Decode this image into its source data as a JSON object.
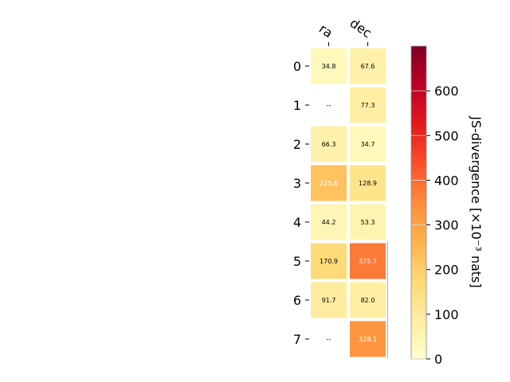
{
  "chart_data": {
    "type": "heatmap",
    "columns": [
      "ra",
      "dec"
    ],
    "rows": [
      "0",
      "1",
      "2",
      "3",
      "4",
      "5",
      "6",
      "7"
    ],
    "values": [
      [
        34.8,
        67.6
      ],
      [
        null,
        77.3
      ],
      [
        66.3,
        34.7
      ],
      [
        225.6,
        128.9
      ],
      [
        44.2,
        53.3
      ],
      [
        170.9,
        375.7
      ],
      [
        91.7,
        82.0
      ],
      [
        null,
        328.1
      ]
    ],
    "cell_labels": [
      [
        "34.8",
        "67.6"
      ],
      [
        "--",
        "77.3"
      ],
      [
        "66.3",
        "34.7"
      ],
      [
        "225.6",
        "128.9"
      ],
      [
        "44.2",
        "53.3"
      ],
      [
        "170.9",
        "375.7"
      ],
      [
        "91.7",
        "82.0"
      ],
      [
        "--",
        "328.1"
      ]
    ],
    "colorbar": {
      "label": "JS-divergence [×10⁻³ nats]",
      "range": [
        0,
        700
      ],
      "ticks": [
        "0",
        "100",
        "200",
        "300",
        "400",
        "500",
        "600"
      ],
      "colormap": "YlOrRd"
    },
    "grid": false
  }
}
